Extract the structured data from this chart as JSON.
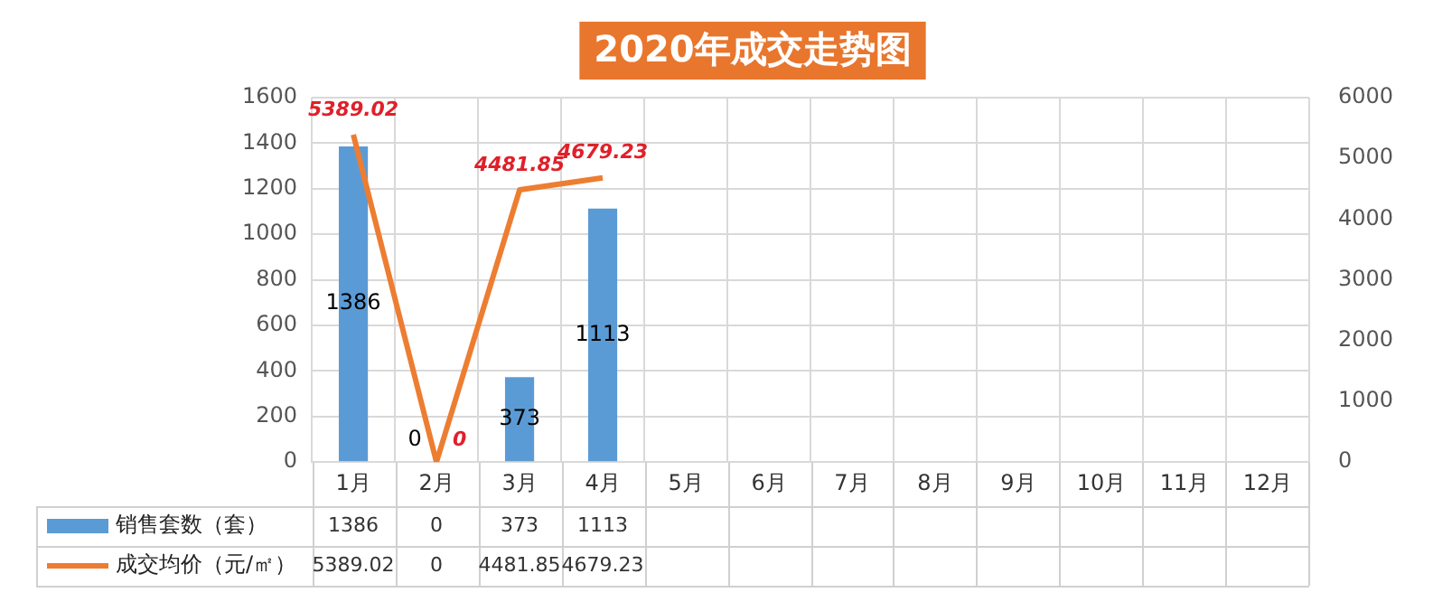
{
  "chart_data": {
    "type": "bar",
    "title": "2020年成交走势图",
    "categories": [
      "1月",
      "2月",
      "3月",
      "4月",
      "5月",
      "6月",
      "7月",
      "8月",
      "9月",
      "10月",
      "11月",
      "12月"
    ],
    "series": [
      {
        "name": "销售套数（套）",
        "color": "#5b9bd5",
        "values": [
          1386,
          0,
          373,
          1113,
          null,
          null,
          null,
          null,
          null,
          null,
          null,
          null
        ]
      },
      {
        "name": "成交均价（元/㎡）",
        "type": "line",
        "axis": "y2",
        "color": "#ed7d31",
        "values": [
          5389.02,
          0,
          4481.85,
          4679.23,
          null,
          null,
          null,
          null,
          null,
          null,
          null,
          null
        ]
      }
    ],
    "annotations": [
      "1386",
      "0",
      "373",
      "1113",
      "5389.02",
      "0",
      "4481.85",
      "4679.23"
    ],
    "ylim": [
      0,
      1600
    ],
    "yticks": [
      0,
      200,
      400,
      600,
      800,
      1000,
      1200,
      1400,
      1600
    ],
    "y2lim": [
      0,
      6000
    ],
    "y2ticks": [
      0,
      1000,
      2000,
      3000,
      4000,
      5000,
      6000
    ],
    "grid": true,
    "legend": "bottom",
    "data_labels": true,
    "marker": "none"
  }
}
